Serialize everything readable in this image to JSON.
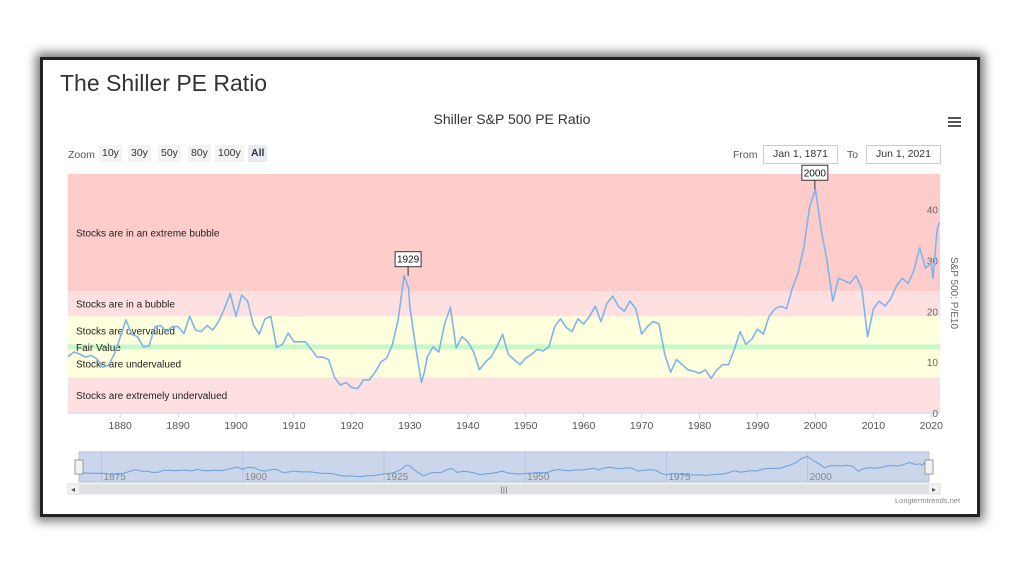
{
  "page_title": "The Shiller PE Ratio",
  "chart_title": "Shiller S&P 500 PE Ratio",
  "range_selector": {
    "zoom_label": "Zoom",
    "buttons": [
      "10y",
      "30y",
      "50y",
      "80y",
      "100y",
      "All"
    ],
    "active": "All",
    "from_label": "From",
    "from_value": "Jan 1, 1871",
    "to_label": "To",
    "to_value": "Jun 1, 2021"
  },
  "icons": {
    "menu": "hamburger-menu-icon"
  },
  "watermark": "Longtermtrends.net",
  "chart_data": {
    "type": "line",
    "title": "Shiller S&P 500 PE Ratio",
    "ylabel": "S&P 500: P/E10",
    "xlabel": "",
    "xlim": [
      1871,
      2021.5
    ],
    "ylim": [
      0,
      47
    ],
    "x_ticks": [
      1880,
      1890,
      1900,
      1910,
      1920,
      1930,
      1940,
      1950,
      1960,
      1970,
      1980,
      1990,
      2000,
      2010,
      2020
    ],
    "y_ticks": [
      0,
      10,
      20,
      30,
      40
    ],
    "grid": false,
    "bands": [
      {
        "label": "Stocks are in an extreme bubble",
        "from": 24,
        "to": 47,
        "color": "#ffcccc"
      },
      {
        "label": "Stocks are in a bubble",
        "from": 19,
        "to": 24,
        "color": "#ffe0e0"
      },
      {
        "label": "Stocks are overvalued",
        "from": 13.5,
        "to": 19,
        "color": "#ffffdd"
      },
      {
        "label": "Fair Value",
        "from": 12.5,
        "to": 13.5,
        "color": "#c8f7c8"
      },
      {
        "label": "Stocks are undervalued",
        "from": 7,
        "to": 12.5,
        "color": "#ffffdd"
      },
      {
        "label": "Stocks are extremely undervalued",
        "from": 0,
        "to": 7,
        "color": "#ffe0e0"
      }
    ],
    "flags": [
      {
        "x": 1929.7,
        "y": 27,
        "label": "1929"
      },
      {
        "x": 1999.9,
        "y": 44,
        "label": "2000"
      }
    ],
    "navigator_ticks": [
      1875,
      1900,
      1925,
      1950,
      1975,
      2000
    ],
    "series": [
      {
        "color": "#7cb5ec",
        "points": [
          [
            1871,
            11.1
          ],
          [
            1872,
            12.0
          ],
          [
            1873,
            11.6
          ],
          [
            1874,
            11.0
          ],
          [
            1875,
            11.3
          ],
          [
            1876,
            10.6
          ],
          [
            1877,
            9.0
          ],
          [
            1878,
            9.4
          ],
          [
            1879,
            11.6
          ],
          [
            1880,
            14.8
          ],
          [
            1881,
            18.3
          ],
          [
            1882,
            15.5
          ],
          [
            1883,
            15.0
          ],
          [
            1884,
            13.0
          ],
          [
            1885,
            13.2
          ],
          [
            1886,
            17.0
          ],
          [
            1887,
            17.2
          ],
          [
            1888,
            16.0
          ],
          [
            1889,
            17.0
          ],
          [
            1890,
            17.0
          ],
          [
            1891,
            15.6
          ],
          [
            1892,
            19.0
          ],
          [
            1893,
            16.3
          ],
          [
            1894,
            16.0
          ],
          [
            1895,
            17.2
          ],
          [
            1896,
            16.3
          ],
          [
            1897,
            18.0
          ],
          [
            1898,
            20.5
          ],
          [
            1899,
            23.5
          ],
          [
            1900,
            19.0
          ],
          [
            1901,
            23.2
          ],
          [
            1902,
            22.0
          ],
          [
            1903,
            17.3
          ],
          [
            1904,
            15.5
          ],
          [
            1905,
            18.5
          ],
          [
            1906,
            19.0
          ],
          [
            1907,
            12.9
          ],
          [
            1908,
            13.5
          ],
          [
            1909,
            15.7
          ],
          [
            1910,
            14.0
          ],
          [
            1911,
            14.0
          ],
          [
            1912,
            14.0
          ],
          [
            1913,
            12.5
          ],
          [
            1914,
            11.0
          ],
          [
            1915,
            11.0
          ],
          [
            1916,
            10.5
          ],
          [
            1917,
            7.0
          ],
          [
            1918,
            5.5
          ],
          [
            1919,
            6.0
          ],
          [
            1920,
            5.0
          ],
          [
            1921,
            4.8
          ],
          [
            1922,
            6.5
          ],
          [
            1923,
            6.5
          ],
          [
            1924,
            8.0
          ],
          [
            1925,
            10.0
          ],
          [
            1926,
            10.8
          ],
          [
            1927,
            13.5
          ],
          [
            1928,
            18.5
          ],
          [
            1929,
            27.0
          ],
          [
            1929.8,
            24.5
          ],
          [
            1930,
            21.0
          ],
          [
            1931,
            13.0
          ],
          [
            1932,
            6.0
          ],
          [
            1932.5,
            8.0
          ],
          [
            1933,
            11.0
          ],
          [
            1934,
            13.0
          ],
          [
            1935,
            12.0
          ],
          [
            1936,
            17.5
          ],
          [
            1937,
            20.8
          ],
          [
            1938,
            12.8
          ],
          [
            1939,
            15.0
          ],
          [
            1940,
            14.0
          ],
          [
            1941,
            12.0
          ],
          [
            1942,
            8.5
          ],
          [
            1943,
            10.0
          ],
          [
            1944,
            11.0
          ],
          [
            1945,
            13.0
          ],
          [
            1946,
            15.5
          ],
          [
            1947,
            11.5
          ],
          [
            1948,
            10.5
          ],
          [
            1949,
            9.5
          ],
          [
            1950,
            10.8
          ],
          [
            1951,
            11.5
          ],
          [
            1952,
            12.5
          ],
          [
            1953,
            12.2
          ],
          [
            1954,
            13.0
          ],
          [
            1955,
            17.0
          ],
          [
            1956,
            18.5
          ],
          [
            1957,
            16.8
          ],
          [
            1958,
            16.0
          ],
          [
            1959,
            18.5
          ],
          [
            1960,
            17.5
          ],
          [
            1961,
            19.0
          ],
          [
            1962,
            21.0
          ],
          [
            1963,
            18.0
          ],
          [
            1964,
            21.5
          ],
          [
            1965,
            23.0
          ],
          [
            1966,
            21.0
          ],
          [
            1967,
            20.0
          ],
          [
            1968,
            22.0
          ],
          [
            1969,
            20.5
          ],
          [
            1970,
            15.5
          ],
          [
            1971,
            17.0
          ],
          [
            1972,
            18.0
          ],
          [
            1973,
            17.5
          ],
          [
            1974,
            11.5
          ],
          [
            1975,
            8.0
          ],
          [
            1976,
            10.5
          ],
          [
            1977,
            9.5
          ],
          [
            1978,
            8.5
          ],
          [
            1979,
            8.2
          ],
          [
            1980,
            7.8
          ],
          [
            1981,
            8.5
          ],
          [
            1982,
            6.8
          ],
          [
            1983,
            8.5
          ],
          [
            1984,
            9.5
          ],
          [
            1985,
            9.5
          ],
          [
            1986,
            12.5
          ],
          [
            1987,
            16.0
          ],
          [
            1988,
            13.5
          ],
          [
            1989,
            14.5
          ],
          [
            1990,
            16.5
          ],
          [
            1991,
            15.5
          ],
          [
            1992,
            19.0
          ],
          [
            1993,
            20.5
          ],
          [
            1994,
            21.0
          ],
          [
            1995,
            20.5
          ],
          [
            1996,
            24.5
          ],
          [
            1997,
            27.5
          ],
          [
            1998,
            32.5
          ],
          [
            1999,
            40.5
          ],
          [
            2000,
            44.0
          ],
          [
            2001,
            36.0
          ],
          [
            2002,
            30.0
          ],
          [
            2003,
            22.0
          ],
          [
            2004,
            26.5
          ],
          [
            2005,
            26.0
          ],
          [
            2006,
            25.5
          ],
          [
            2007,
            27.0
          ],
          [
            2008,
            24.5
          ],
          [
            2009,
            15.0
          ],
          [
            2010,
            20.5
          ],
          [
            2011,
            22.0
          ],
          [
            2012,
            21.0
          ],
          [
            2013,
            22.5
          ],
          [
            2014,
            25.0
          ],
          [
            2015,
            26.5
          ],
          [
            2016,
            25.5
          ],
          [
            2017,
            28.0
          ],
          [
            2018,
            32.5
          ],
          [
            2019,
            28.5
          ],
          [
            2020,
            29.5
          ],
          [
            2020.3,
            26.5
          ],
          [
            2021,
            36.0
          ],
          [
            2021.4,
            37.5
          ]
        ]
      }
    ]
  }
}
